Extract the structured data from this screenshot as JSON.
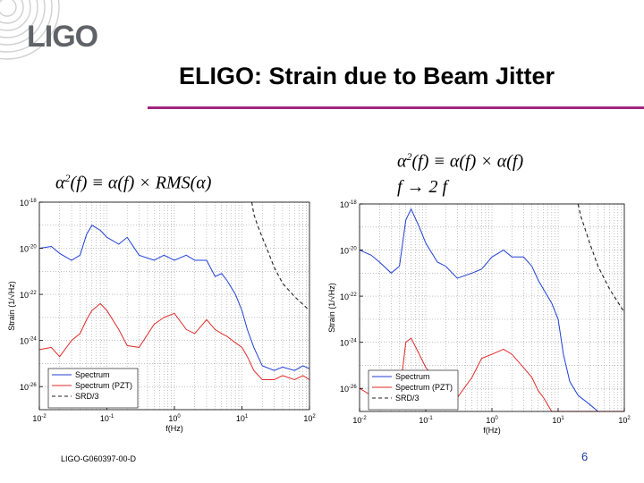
{
  "logo": {
    "text": "LIGO"
  },
  "slide": {
    "title": "ELIGO: Strain due to Beam Jitter",
    "footer": "LIGO-G060397-00-D",
    "page_number": "6"
  },
  "equations": {
    "left": {
      "sym": "α",
      "sup": "2",
      "rest": "(f) ≡ α(f) × RMS(α)"
    },
    "right_line1": {
      "sym": "α",
      "sup": "2",
      "rest": "(f) ≡ α(f) × α(f)"
    },
    "right_line2": "f → 2 f"
  },
  "colors": {
    "spectrum": "#1f3fd6",
    "pzt": "#e02a2a",
    "srd": "#222222",
    "rule": "#a0257f"
  },
  "chart_data": [
    {
      "type": "line",
      "xscale": "log",
      "yscale": "log",
      "xlabel": "f(Hz)",
      "ylabel": "Strain (1/√Hz)",
      "xlim": [
        0.01,
        100
      ],
      "ylim": [
        1e-27,
        1e-18
      ],
      "grid": true,
      "legend_placement": "bottom-left",
      "xticks": [
        {
          "value": 0.01,
          "label": "10",
          "exp": "-2"
        },
        {
          "value": 0.1,
          "label": "10",
          "exp": "-1"
        },
        {
          "value": 1,
          "label": "10",
          "exp": "0"
        },
        {
          "value": 10,
          "label": "10",
          "exp": "1"
        },
        {
          "value": 100,
          "label": "10",
          "exp": "2"
        }
      ],
      "yticks": [
        {
          "value": 1e-18,
          "label": "10",
          "exp": "-18"
        },
        {
          "value": 1e-20,
          "label": "10",
          "exp": "-20"
        },
        {
          "value": 1e-22,
          "label": "10",
          "exp": "-22"
        },
        {
          "value": 1e-24,
          "label": "10",
          "exp": "-24"
        },
        {
          "value": 1e-26,
          "label": "10",
          "exp": "-26"
        }
      ],
      "series": [
        {
          "name": "Spectrum",
          "color_key": "spectrum",
          "style": "solid",
          "x": [
            0.01,
            0.015,
            0.02,
            0.03,
            0.04,
            0.05,
            0.06,
            0.08,
            0.1,
            0.15,
            0.2,
            0.3,
            0.5,
            0.7,
            1,
            1.5,
            2,
            3,
            4,
            5,
            6,
            8,
            10,
            12,
            15,
            20,
            30,
            40,
            60,
            80,
            100
          ],
          "y": [
            1e-20,
            1.2e-20,
            6e-21,
            3e-21,
            5e-21,
            4e-20,
            1e-19,
            6e-20,
            3e-20,
            1.5e-20,
            3e-20,
            5e-21,
            3e-21,
            5e-21,
            3e-21,
            5e-21,
            3e-21,
            3e-21,
            6e-22,
            8e-22,
            4e-22,
            1e-22,
            2e-23,
            3e-24,
            5e-25,
            8e-26,
            5e-26,
            7e-26,
            5e-26,
            8e-26,
            6e-26
          ]
        },
        {
          "name": "Spectrum (PZT)",
          "color_key": "pzt",
          "style": "solid",
          "x": [
            0.01,
            0.015,
            0.02,
            0.03,
            0.04,
            0.05,
            0.06,
            0.08,
            0.1,
            0.15,
            0.2,
            0.3,
            0.5,
            0.7,
            1,
            1.5,
            2,
            3,
            4,
            5,
            6,
            8,
            10,
            12,
            15,
            20,
            30,
            40,
            60,
            80,
            100
          ],
          "y": [
            4e-25,
            5e-25,
            2e-25,
            1e-24,
            2e-24,
            8e-24,
            2e-23,
            4e-23,
            2e-23,
            3e-24,
            6e-25,
            5e-25,
            5e-24,
            1e-23,
            1.5e-23,
            3e-24,
            2e-24,
            8e-24,
            3e-24,
            2e-24,
            1.5e-24,
            8e-25,
            5e-25,
            2e-25,
            5e-26,
            2e-26,
            2e-26,
            3e-26,
            2e-26,
            3e-26,
            2e-26
          ]
        },
        {
          "name": "SRD/3",
          "color_key": "srd",
          "style": "dashed",
          "x": [
            14,
            15,
            17,
            20,
            25,
            30,
            40,
            60,
            100
          ],
          "y": [
            1e-18,
            3e-19,
            1e-19,
            3e-20,
            6e-21,
            1.5e-21,
            3e-22,
            8e-23,
            2e-23
          ]
        }
      ]
    },
    {
      "type": "line",
      "xscale": "log",
      "yscale": "log",
      "xlabel": "f(Hz)",
      "ylabel": "Strain (1/√Hz)",
      "xlim": [
        0.01,
        100
      ],
      "ylim": [
        1e-27,
        1e-18
      ],
      "grid": true,
      "legend_placement": "bottom-left",
      "xticks": [
        {
          "value": 0.01,
          "label": "10",
          "exp": "-2"
        },
        {
          "value": 0.1,
          "label": "10",
          "exp": "-1"
        },
        {
          "value": 1,
          "label": "10",
          "exp": "0"
        },
        {
          "value": 10,
          "label": "10",
          "exp": "1"
        },
        {
          "value": 100,
          "label": "10",
          "exp": "2"
        }
      ],
      "yticks": [
        {
          "value": 1e-18,
          "label": "10",
          "exp": "-18"
        },
        {
          "value": 1e-20,
          "label": "10",
          "exp": "-20"
        },
        {
          "value": 1e-22,
          "label": "10",
          "exp": "-22"
        },
        {
          "value": 1e-24,
          "label": "10",
          "exp": "-24"
        },
        {
          "value": 1e-26,
          "label": "10",
          "exp": "-26"
        }
      ],
      "series": [
        {
          "name": "Spectrum",
          "color_key": "spectrum",
          "style": "solid",
          "x": [
            0.01,
            0.015,
            0.02,
            0.03,
            0.04,
            0.05,
            0.06,
            0.08,
            0.1,
            0.15,
            0.2,
            0.3,
            0.5,
            0.7,
            1,
            1.5,
            2,
            3,
            4,
            5,
            6,
            8,
            10,
            12,
            15,
            20,
            30,
            40,
            60,
            80,
            100
          ],
          "y": [
            1e-20,
            6e-21,
            3e-21,
            1e-21,
            2e-21,
            2e-19,
            6e-19,
            1e-19,
            2e-20,
            3e-21,
            2e-21,
            6e-22,
            1e-21,
            1.5e-21,
            5e-21,
            1e-20,
            5e-21,
            5e-21,
            2e-21,
            5e-22,
            2e-22,
            5e-23,
            1e-23,
            3e-25,
            2e-26,
            5e-27,
            2e-27,
            1e-27,
            1e-27,
            1e-27,
            1e-27
          ]
        },
        {
          "name": "Spectrum (PZT)",
          "color_key": "pzt",
          "style": "solid",
          "x": [
            0.01,
            0.015,
            0.02,
            0.03,
            0.04,
            0.05,
            0.06,
            0.08,
            0.1,
            0.15,
            0.2,
            0.3,
            0.5,
            0.7,
            1,
            1.5,
            2,
            3,
            4,
            5,
            6,
            8,
            10,
            12,
            15,
            20,
            30,
            40,
            60,
            80,
            100
          ],
          "y": [
            1e-26,
            5e-27,
            3e-27,
            2e-27,
            5e-27,
            1e-24,
            1.5e-24,
            3e-25,
            8e-26,
            2e-26,
            6e-27,
            4e-27,
            3e-26,
            2e-25,
            3e-25,
            5e-25,
            3e-25,
            8e-26,
            3e-26,
            8e-27,
            4e-27,
            1e-27,
            1e-27,
            1e-27,
            1e-27,
            1e-27,
            1e-27,
            1e-27,
            1e-27,
            1e-27,
            1e-27
          ]
        },
        {
          "name": "SRD/3",
          "color_key": "srd",
          "style": "dashed",
          "x": [
            20,
            22,
            25,
            30,
            40,
            60,
            100
          ],
          "y": [
            1e-18,
            3e-19,
            1e-19,
            2e-20,
            2e-21,
            2e-22,
            2e-23
          ]
        }
      ]
    }
  ]
}
